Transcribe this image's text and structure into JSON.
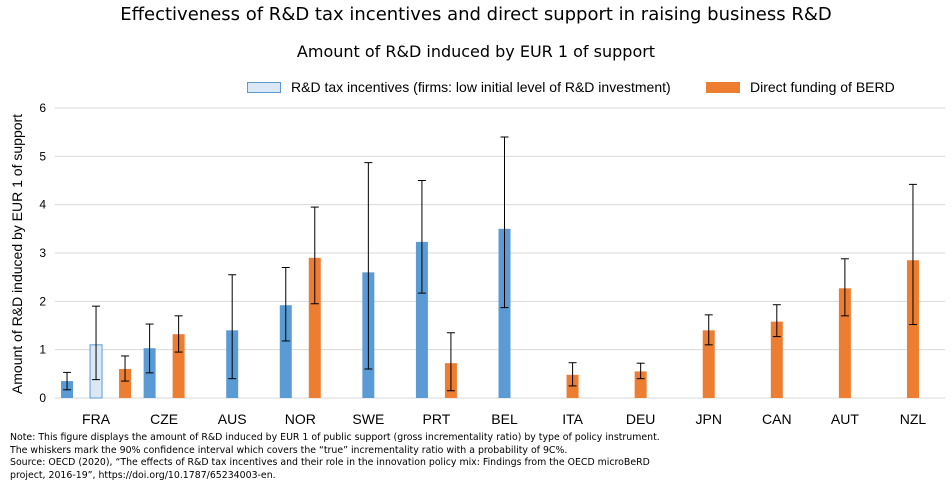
{
  "header": {
    "title": "Effectiveness of R&D tax incentives and direct support in raising business R&D",
    "subtitle": "Amount of R&D induced by EUR 1 of support"
  },
  "notes": [
    "Note: This figure displays the amount of R&D induced by EUR 1 of public support (gross incrementality ratio) by type of policy instrument.",
    "The whiskers mark the 90% confidence interval which covers the “true” incrementality ratio with a probability of 9C%.",
    "Source: OECD (2020), “The effects of R&D tax incentives and their role in the innovation policy mix: Findings from the OECD microBeRD",
    "project, 2016-19”, https://doi.org/10.1787/65234003-en."
  ],
  "colors": {
    "tax_high": "#5b9bd5",
    "tax_low_fill": "#dde8f6",
    "direct": "#ed7d31",
    "grid": "#d9d9d9"
  },
  "chart_data": {
    "type": "bar",
    "title": "Amount of R&D induced by EUR 1 of support",
    "ylabel": "Amount of R&D induced by EUR 1 of support",
    "ylim": [
      0,
      6
    ],
    "yticks": [
      0,
      1,
      2,
      3,
      4,
      5,
      6
    ],
    "grid": true,
    "legend_placement": "top",
    "legend": [
      "R&D tax incentives (firms: low initial level of R&D investment)",
      "Direct funding of BERD"
    ],
    "categories": [
      "FRA",
      "CZE",
      "AUS",
      "NOR",
      "SWE",
      "PRT",
      "BEL",
      "ITA",
      "DEU",
      "JPN",
      "CAN",
      "AUT",
      "NZL"
    ],
    "bars": [
      {
        "category": "FRA",
        "kind": "tax_high",
        "value": 0.35,
        "ci": [
          0.17,
          0.53
        ]
      },
      {
        "category": "FRA",
        "kind": "tax_low",
        "value": 1.1,
        "ci": [
          0.38,
          1.9
        ]
      },
      {
        "category": "FRA",
        "kind": "direct",
        "value": 0.6,
        "ci": [
          0.35,
          0.87
        ]
      },
      {
        "category": "CZE",
        "kind": "tax_high",
        "value": 1.03,
        "ci": [
          0.52,
          1.53
        ]
      },
      {
        "category": "CZE",
        "kind": "direct",
        "value": 1.32,
        "ci": [
          0.95,
          1.7
        ]
      },
      {
        "category": "AUS",
        "kind": "tax_high",
        "value": 1.4,
        "ci": [
          0.4,
          2.55
        ]
      },
      {
        "category": "NOR",
        "kind": "tax_high",
        "value": 1.92,
        "ci": [
          1.18,
          2.7
        ]
      },
      {
        "category": "NOR",
        "kind": "direct",
        "value": 2.9,
        "ci": [
          1.95,
          3.95
        ]
      },
      {
        "category": "SWE",
        "kind": "tax_high",
        "value": 2.6,
        "ci": [
          0.6,
          4.87
        ]
      },
      {
        "category": "PRT",
        "kind": "tax_high",
        "value": 3.23,
        "ci": [
          2.17,
          4.5
        ]
      },
      {
        "category": "PRT",
        "kind": "direct",
        "value": 0.72,
        "ci": [
          0.15,
          1.35
        ]
      },
      {
        "category": "BEL",
        "kind": "tax_high",
        "value": 3.5,
        "ci": [
          1.87,
          5.4
        ]
      },
      {
        "category": "ITA",
        "kind": "direct",
        "value": 0.48,
        "ci": [
          0.25,
          0.73
        ]
      },
      {
        "category": "DEU",
        "kind": "direct",
        "value": 0.55,
        "ci": [
          0.4,
          0.72
        ]
      },
      {
        "category": "JPN",
        "kind": "direct",
        "value": 1.4,
        "ci": [
          1.1,
          1.72
        ]
      },
      {
        "category": "CAN",
        "kind": "direct",
        "value": 1.58,
        "ci": [
          1.27,
          1.93
        ]
      },
      {
        "category": "AUT",
        "kind": "direct",
        "value": 2.27,
        "ci": [
          1.7,
          2.88
        ]
      },
      {
        "category": "NZL",
        "kind": "direct",
        "value": 2.85,
        "ci": [
          1.52,
          4.42
        ]
      }
    ]
  }
}
